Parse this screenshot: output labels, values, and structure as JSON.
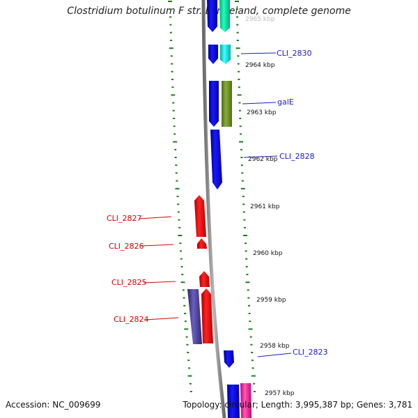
{
  "title": "Clostridium botulinum F str. Langeland, complete genome",
  "footer": {
    "accession": "Accession: NC_009699",
    "summary": "Topology: circular; Length: 3,995,387 bp; Genes: 3,781"
  },
  "colors": {
    "backbone": "#808080",
    "tick": "#1e7a1e",
    "tick_label": "#111111",
    "forward_label": "#1a1acc",
    "reverse_label": "#dd0000"
  },
  "kbp_labels": [
    "2965 kbp",
    "2964 kbp",
    "2963 kbp",
    "2962 kbp",
    "2961 kbp",
    "2960 kbp",
    "2959 kbp",
    "2958 kbp",
    "2957 kbp"
  ],
  "gene_labels": {
    "cli_2830": "CLI_2830",
    "gale": "galE",
    "cli_2828": "CLI_2828",
    "cli_2827": "CLI_2827",
    "cli_2826": "CLI_2826",
    "cli_2825": "CLI_2825",
    "cli_2824": "CLI_2824",
    "cli_2823": "CLI_2823"
  },
  "feature_colors": {
    "forward_gene": "#0000ee",
    "reverse_gene": "#ee0000",
    "cyan_1": "#11ddaa",
    "cyan_2": "#22e0e0",
    "olive": "#6b8e23",
    "slate": "#4a4090",
    "magenta": "#ff2a9f"
  }
}
